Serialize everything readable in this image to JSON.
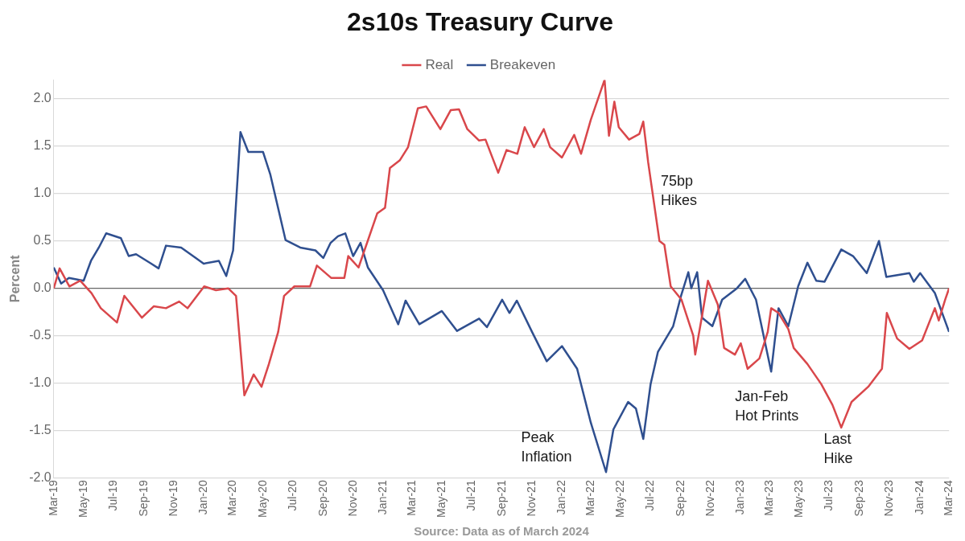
{
  "chart_data": {
    "type": "line",
    "title": "2s10s Treasury Curve",
    "ylabel": "Percent",
    "xlim": [
      "2019-03-01",
      "2024-03-01"
    ],
    "xticks": [
      {
        "value": "2019-03-01",
        "label": "Mar-19"
      },
      {
        "value": "2019-05-01",
        "label": "May-19"
      },
      {
        "value": "2019-07-01",
        "label": "Jul-19"
      },
      {
        "value": "2019-09-01",
        "label": "Sep-19"
      },
      {
        "value": "2019-11-01",
        "label": "Nov-19"
      },
      {
        "value": "2020-01-01",
        "label": "Jan-20"
      },
      {
        "value": "2020-03-01",
        "label": "Mar-20"
      },
      {
        "value": "2020-05-01",
        "label": "May-20"
      },
      {
        "value": "2020-07-01",
        "label": "Jul-20"
      },
      {
        "value": "2020-09-01",
        "label": "Sep-20"
      },
      {
        "value": "2020-11-01",
        "label": "Nov-20"
      },
      {
        "value": "2021-01-01",
        "label": "Jan-21"
      },
      {
        "value": "2021-03-01",
        "label": "Mar-21"
      },
      {
        "value": "2021-05-01",
        "label": "May-21"
      },
      {
        "value": "2021-07-01",
        "label": "Jul-21"
      },
      {
        "value": "2021-09-01",
        "label": "Sep-21"
      },
      {
        "value": "2021-11-01",
        "label": "Nov-21"
      },
      {
        "value": "2022-01-01",
        "label": "Jan-22"
      },
      {
        "value": "2022-03-01",
        "label": "Mar-22"
      },
      {
        "value": "2022-05-01",
        "label": "May-22"
      },
      {
        "value": "2022-07-01",
        "label": "Jul-22"
      },
      {
        "value": "2022-09-01",
        "label": "Sep-22"
      },
      {
        "value": "2022-11-01",
        "label": "Nov-22"
      },
      {
        "value": "2023-01-01",
        "label": "Jan-23"
      },
      {
        "value": "2023-03-01",
        "label": "Mar-23"
      },
      {
        "value": "2023-05-01",
        "label": "May-23"
      },
      {
        "value": "2023-07-01",
        "label": "Jul-23"
      },
      {
        "value": "2023-09-01",
        "label": "Sep-23"
      },
      {
        "value": "2023-11-01",
        "label": "Nov-23"
      },
      {
        "value": "2024-01-01",
        "label": "Jan-24"
      },
      {
        "value": "2024-03-01",
        "label": "Mar-24"
      }
    ],
    "ylim": [
      -2.0,
      2.2
    ],
    "yticks": [
      {
        "value": -2,
        "label": "-2.0"
      },
      {
        "value": -1.5,
        "label": "-1.5"
      },
      {
        "value": -1,
        "label": "-1.0"
      },
      {
        "value": -0.5,
        "label": "-0.5"
      },
      {
        "value": 0,
        "label": "0.0"
      },
      {
        "value": 0.5,
        "label": "0.5"
      },
      {
        "value": 1,
        "label": "1.0"
      },
      {
        "value": 1.5,
        "label": "1.5"
      },
      {
        "value": 2,
        "label": "2.0"
      }
    ],
    "grid": "y",
    "legend": "top",
    "marker": "none",
    "line_style": "solid",
    "series": [
      {
        "name": "Real",
        "color": "#d9474b",
        "x": [
          "2019-03-01",
          "2019-03-13",
          "2019-04-02",
          "2019-04-24",
          "2019-05-17",
          "2019-06-05",
          "2019-07-08",
          "2019-07-23",
          "2019-08-28",
          "2019-09-21",
          "2019-10-16",
          "2019-11-12",
          "2019-11-29",
          "2020-01-02",
          "2020-01-26",
          "2020-02-20",
          "2020-03-07",
          "2020-03-24",
          "2020-04-12",
          "2020-04-28",
          "2020-05-13",
          "2020-06-01",
          "2020-06-13",
          "2020-07-04",
          "2020-08-05",
          "2020-08-19",
          "2020-09-17",
          "2020-10-14",
          "2020-10-22",
          "2020-11-12",
          "2020-12-20",
          "2021-01-05",
          "2021-01-15",
          "2021-02-04",
          "2021-02-21",
          "2021-03-13",
          "2021-03-30",
          "2021-04-28",
          "2021-05-19",
          "2021-06-05",
          "2021-06-22",
          "2021-07-16",
          "2021-07-29",
          "2021-08-24",
          "2021-09-10",
          "2021-10-02",
          "2021-10-17",
          "2021-11-05",
          "2021-11-25",
          "2021-12-08",
          "2022-01-01",
          "2022-01-26",
          "2022-02-09",
          "2022-03-01",
          "2022-03-29",
          "2022-04-07",
          "2022-04-18",
          "2022-04-27",
          "2022-05-18",
          "2022-06-08",
          "2022-06-16",
          "2022-06-26",
          "2022-07-19",
          "2022-07-29",
          "2022-08-11",
          "2022-09-02",
          "2022-09-26",
          "2022-09-30",
          "2022-10-14",
          "2022-10-26",
          "2022-11-15",
          "2022-11-28",
          "2022-12-20",
          "2023-01-01",
          "2023-01-15",
          "2023-02-08",
          "2023-02-25",
          "2023-03-04",
          "2023-03-19",
          "2023-04-08",
          "2023-04-19",
          "2023-05-17",
          "2023-06-14",
          "2023-07-07",
          "2023-07-25",
          "2023-08-15",
          "2023-09-18",
          "2023-10-16",
          "2023-10-26",
          "2023-11-16",
          "2023-12-11",
          "2024-01-06",
          "2024-02-01",
          "2024-02-09",
          "2024-02-22",
          "2024-03-01"
        ],
        "values": [
          0.0,
          0.21,
          0.02,
          0.08,
          -0.05,
          -0.21,
          -0.36,
          -0.08,
          -0.31,
          -0.19,
          -0.21,
          -0.14,
          -0.21,
          0.02,
          -0.02,
          0.0,
          -0.08,
          -1.13,
          -0.91,
          -1.04,
          -0.8,
          -0.46,
          -0.08,
          0.02,
          0.02,
          0.24,
          0.11,
          0.11,
          0.34,
          0.22,
          0.79,
          0.85,
          1.27,
          1.35,
          1.49,
          1.9,
          1.92,
          1.68,
          1.88,
          1.89,
          1.68,
          1.56,
          1.57,
          1.22,
          1.46,
          1.42,
          1.7,
          1.49,
          1.68,
          1.49,
          1.38,
          1.62,
          1.42,
          1.78,
          2.2,
          1.61,
          1.97,
          1.7,
          1.57,
          1.63,
          1.76,
          1.33,
          0.5,
          0.46,
          0.02,
          -0.12,
          -0.5,
          -0.7,
          -0.29,
          0.08,
          -0.17,
          -0.63,
          -0.7,
          -0.58,
          -0.85,
          -0.74,
          -0.46,
          -0.21,
          -0.26,
          -0.43,
          -0.63,
          -0.8,
          -1.01,
          -1.23,
          -1.47,
          -1.2,
          -1.04,
          -0.85,
          -0.26,
          -0.53,
          -0.64,
          -0.55,
          -0.21,
          -0.34,
          -0.12,
          0.0
        ]
      },
      {
        "name": "Breakeven",
        "color": "#2f4f8f",
        "x": [
          "2019-03-01",
          "2019-03-16",
          "2019-04-01",
          "2019-05-01",
          "2019-05-16",
          "2019-06-01",
          "2019-06-16",
          "2019-07-16",
          "2019-08-01",
          "2019-08-16",
          "2019-09-16",
          "2019-10-01",
          "2019-10-16",
          "2019-11-16",
          "2019-12-16",
          "2020-01-01",
          "2020-02-01",
          "2020-02-16",
          "2020-03-01",
          "2020-03-16",
          "2020-04-01",
          "2020-05-01",
          "2020-05-16",
          "2020-06-16",
          "2020-07-16",
          "2020-08-16",
          "2020-09-01",
          "2020-09-16",
          "2020-10-01",
          "2020-10-16",
          "2020-11-01",
          "2020-11-16",
          "2020-12-01",
          "2021-01-01",
          "2021-02-01",
          "2021-02-16",
          "2021-03-16",
          "2021-05-01",
          "2021-06-01",
          "2021-07-16",
          "2021-08-01",
          "2021-09-01",
          "2021-09-16",
          "2021-10-01",
          "2021-11-01",
          "2021-12-01",
          "2022-01-01",
          "2022-02-01",
          "2022-03-01",
          "2022-04-01",
          "2022-04-16",
          "2022-05-16",
          "2022-06-01",
          "2022-06-16",
          "2022-07-01",
          "2022-07-16",
          "2022-08-16",
          "2022-09-01",
          "2022-09-16",
          "2022-09-22",
          "2022-10-04",
          "2022-10-14",
          "2022-11-04",
          "2022-11-24",
          "2022-12-24",
          "2023-01-10",
          "2023-02-01",
          "2023-03-04",
          "2023-03-19",
          "2023-04-08",
          "2023-04-28",
          "2023-05-17",
          "2023-06-04",
          "2023-06-21",
          "2023-07-25",
          "2023-08-18",
          "2023-09-15",
          "2023-10-10",
          "2023-10-25",
          "2023-12-11",
          "2023-12-20",
          "2024-01-02",
          "2024-02-01",
          "2024-03-01"
        ],
        "values": [
          0.22,
          0.05,
          0.11,
          0.08,
          0.29,
          0.43,
          0.58,
          0.53,
          0.34,
          0.36,
          0.26,
          0.21,
          0.45,
          0.43,
          0.32,
          0.26,
          0.29,
          0.13,
          0.4,
          1.65,
          1.44,
          1.44,
          1.2,
          0.51,
          0.43,
          0.4,
          0.32,
          0.48,
          0.55,
          0.58,
          0.34,
          0.48,
          0.22,
          -0.02,
          -0.38,
          -0.13,
          -0.38,
          -0.24,
          -0.45,
          -0.32,
          -0.41,
          -0.12,
          -0.26,
          -0.13,
          -0.46,
          -0.77,
          -0.61,
          -0.85,
          -1.42,
          -1.94,
          -1.49,
          -1.2,
          -1.27,
          -1.59,
          -1.01,
          -0.67,
          -0.4,
          -0.08,
          0.17,
          0.0,
          0.17,
          -0.31,
          -0.4,
          -0.12,
          0.0,
          0.1,
          -0.12,
          -0.88,
          -0.21,
          -0.4,
          0.02,
          0.27,
          0.08,
          0.07,
          0.41,
          0.34,
          0.16,
          0.5,
          0.12,
          0.16,
          0.07,
          0.16,
          -0.05,
          -0.46
        ]
      }
    ],
    "annotations": [
      "75bp\nHikes",
      "Peak\nInflation",
      "Jan-Feb\nHot Prints",
      "Last\nHike",
      "Source: Data as of March 2024"
    ]
  }
}
